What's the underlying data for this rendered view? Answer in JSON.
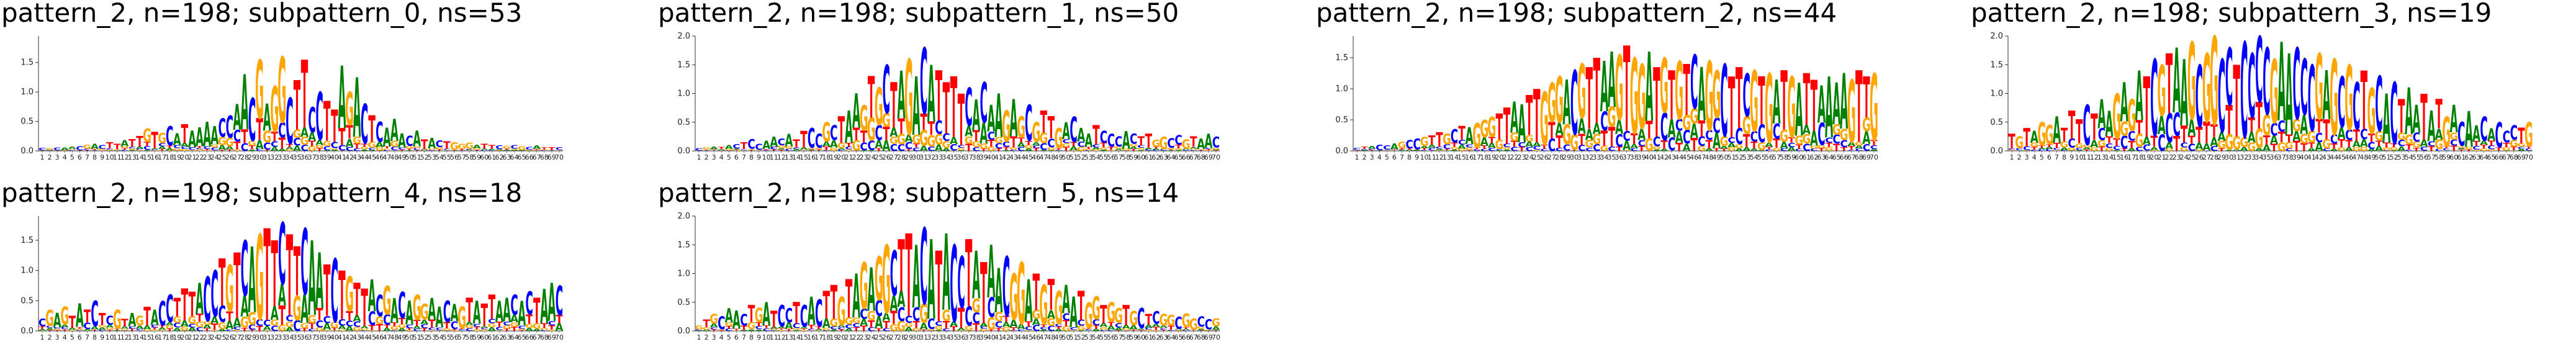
{
  "colors": {
    "A": "#008000",
    "C": "#0000ff",
    "G": "#ffa500",
    "T": "#ff0000"
  },
  "yticks": [
    "0.0",
    "0.5",
    "1.0",
    "1.5",
    "2.0"
  ],
  "seq_length": 70,
  "chart_data": [
    {
      "type": "sequence-logo",
      "title": "pattern_2, n=198; subpattern_0, ns=53",
      "ylim": [
        0,
        1.95
      ],
      "ytick_labels": [
        "0.0",
        "0.5",
        "1.0",
        "1.5"
      ],
      "positions": [
        0.05,
        0.05,
        0.06,
        0.06,
        0.07,
        0.08,
        0.1,
        0.12,
        0.1,
        0.14,
        0.12,
        0.18,
        0.2,
        0.25,
        0.38,
        0.32,
        0.3,
        0.42,
        0.3,
        0.45,
        0.35,
        0.4,
        0.5,
        0.42,
        0.55,
        0.6,
        0.8,
        1.3,
        0.9,
        1.55,
        0.8,
        1.1,
        1.6,
        0.9,
        1.2,
        1.55,
        0.75,
        1.0,
        0.85,
        0.7,
        1.45,
        1.0,
        1.25,
        0.8,
        0.6,
        0.5,
        0.4,
        0.55,
        0.3,
        0.25,
        0.35,
        0.2,
        0.22,
        0.18,
        0.16,
        0.15,
        0.12,
        0.14,
        0.1,
        0.12,
        0.1,
        0.09,
        0.08,
        0.1,
        0.08,
        0.07,
        0.09,
        0.06,
        0.07,
        0.06
      ]
    },
    {
      "type": "sequence-logo",
      "title": "pattern_2, n=198; subpattern_1, ns=50",
      "ylim": [
        0,
        2.0
      ],
      "ytick_labels": [
        "0.0",
        "0.5",
        "1.0",
        "1.5",
        "2.0"
      ],
      "positions": [
        0.05,
        0.06,
        0.08,
        0.07,
        0.1,
        0.12,
        0.15,
        0.2,
        0.12,
        0.18,
        0.25,
        0.22,
        0.3,
        0.2,
        0.35,
        0.4,
        0.3,
        0.5,
        0.45,
        0.6,
        0.7,
        1.0,
        0.8,
        1.3,
        1.1,
        1.5,
        1.2,
        1.4,
        1.6,
        1.3,
        1.8,
        1.5,
        1.4,
        1.2,
        1.3,
        1.0,
        1.1,
        0.9,
        1.2,
        0.8,
        1.0,
        0.7,
        0.9,
        0.6,
        0.8,
        0.5,
        0.7,
        0.6,
        0.4,
        0.5,
        0.6,
        0.4,
        0.3,
        0.45,
        0.35,
        0.3,
        0.25,
        0.35,
        0.3,
        0.25,
        0.3,
        0.2,
        0.25,
        0.22,
        0.28,
        0.2,
        0.25,
        0.22,
        0.3,
        0.25
      ]
    },
    {
      "type": "sequence-logo",
      "title": "pattern_2, n=198; subpattern_2, ns=44",
      "ylim": [
        0,
        1.85
      ],
      "ytick_labels": [
        "0.0",
        "0.5",
        "1.0",
        "1.5"
      ],
      "positions": [
        0.05,
        0.07,
        0.08,
        0.1,
        0.09,
        0.12,
        0.15,
        0.18,
        0.2,
        0.22,
        0.25,
        0.3,
        0.28,
        0.35,
        0.4,
        0.38,
        0.45,
        0.5,
        0.55,
        0.6,
        0.7,
        0.8,
        0.75,
        0.9,
        1.0,
        0.95,
        1.1,
        1.2,
        1.15,
        1.3,
        1.4,
        1.35,
        1.5,
        1.45,
        1.6,
        1.55,
        1.7,
        1.5,
        1.4,
        1.6,
        1.35,
        1.5,
        1.3,
        1.45,
        1.4,
        1.55,
        1.35,
        1.45,
        1.3,
        1.4,
        1.2,
        1.35,
        1.25,
        1.3,
        1.2,
        1.25,
        1.15,
        1.3,
        1.2,
        1.1,
        1.25,
        1.15,
        1.05,
        1.2,
        1.1,
        1.25,
        1.15,
        1.3,
        1.2,
        1.25
      ]
    },
    {
      "type": "sequence-logo",
      "title": "pattern_2, n=198; subpattern_3, ns=19",
      "ylim": [
        0,
        2.0
      ],
      "ytick_labels": [
        "0.0",
        "0.5",
        "1.0",
        "1.5",
        "2.0"
      ],
      "positions": [
        0.3,
        0.25,
        0.4,
        0.35,
        0.5,
        0.45,
        0.6,
        0.4,
        0.7,
        0.55,
        0.8,
        0.65,
        0.9,
        0.7,
        1.0,
        1.2,
        0.9,
        1.4,
        1.3,
        1.6,
        1.5,
        1.7,
        1.8,
        1.6,
        1.9,
        1.5,
        1.7,
        2.0,
        1.6,
        1.8,
        1.5,
        1.9,
        1.7,
        2.0,
        1.8,
        1.6,
        1.9,
        1.7,
        1.8,
        1.6,
        1.5,
        1.7,
        1.4,
        1.6,
        1.3,
        1.5,
        1.2,
        1.4,
        1.1,
        1.3,
        1.0,
        1.2,
        0.9,
        1.1,
        0.8,
        1.0,
        0.7,
        0.9,
        0.6,
        0.8,
        0.5,
        0.7,
        0.45,
        0.6,
        0.4,
        0.5,
        0.35,
        0.45,
        0.4,
        0.5
      ]
    },
    {
      "type": "sequence-logo",
      "title": "pattern_2, n=198; subpattern_4, ns=18",
      "ylim": [
        0,
        1.9
      ],
      "ytick_labels": [
        "0.0",
        "0.5",
        "1.0",
        "1.5"
      ],
      "positions": [
        0.2,
        0.35,
        0.3,
        0.4,
        0.25,
        0.45,
        0.35,
        0.5,
        0.3,
        0.25,
        0.35,
        0.2,
        0.3,
        0.25,
        0.4,
        0.35,
        0.5,
        0.6,
        0.55,
        0.7,
        0.65,
        0.8,
        0.9,
        1.0,
        1.2,
        1.1,
        1.3,
        1.5,
        1.4,
        1.6,
        1.7,
        1.5,
        1.8,
        1.6,
        1.4,
        1.7,
        1.5,
        1.3,
        1.1,
        1.2,
        1.0,
        0.9,
        0.8,
        0.7,
        0.85,
        0.6,
        0.75,
        0.55,
        0.65,
        0.5,
        0.6,
        0.45,
        0.55,
        0.4,
        0.5,
        0.45,
        0.4,
        0.55,
        0.5,
        0.45,
        0.6,
        0.5,
        0.55,
        0.6,
        0.5,
        0.65,
        0.55,
        0.7,
        0.8,
        0.75
      ]
    },
    {
      "type": "sequence-logo",
      "title": "pattern_2, n=198; subpattern_5, ns=14",
      "ylim": [
        0,
        2.0
      ],
      "ytick_labels": [
        "0.0",
        "0.5",
        "1.0",
        "1.5",
        "2.0"
      ],
      "positions": [
        0.1,
        0.2,
        0.3,
        0.25,
        0.4,
        0.35,
        0.3,
        0.45,
        0.4,
        0.5,
        0.35,
        0.45,
        0.4,
        0.5,
        0.45,
        0.6,
        0.55,
        0.7,
        0.8,
        0.6,
        0.9,
        1.0,
        1.2,
        1.1,
        1.3,
        1.5,
        1.4,
        1.6,
        1.7,
        1.5,
        1.8,
        1.6,
        1.4,
        1.7,
        1.5,
        1.3,
        1.6,
        1.4,
        1.2,
        1.5,
        1.1,
        1.3,
        1.0,
        1.2,
        0.9,
        1.0,
        0.8,
        0.9,
        0.7,
        0.8,
        0.6,
        0.7,
        0.5,
        0.6,
        0.45,
        0.5,
        0.4,
        0.45,
        0.35,
        0.4,
        0.3,
        0.35,
        0.3,
        0.28,
        0.25,
        0.3,
        0.22,
        0.25,
        0.2,
        0.22
      ]
    }
  ]
}
